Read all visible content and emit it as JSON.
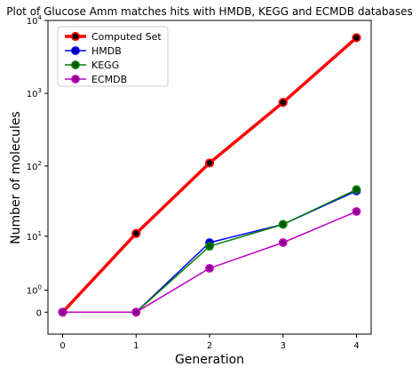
{
  "chart_data": {
    "type": "line",
    "title": "Plot of Glucose Amm matches hits with HMDB, KEGG and ECMDB databases",
    "xlabel": "Generation",
    "ylabel": "Number of molecules",
    "x": [
      0,
      1,
      2,
      3,
      4
    ],
    "xlim": [
      -0.2,
      4.2
    ],
    "ylim": [
      -1,
      10000
    ],
    "yscale": "symlog",
    "x_ticks": [
      {
        "value": 0,
        "label": "0"
      },
      {
        "value": 1,
        "label": "1"
      },
      {
        "value": 2,
        "label": "2"
      },
      {
        "value": 3,
        "label": "3"
      },
      {
        "value": 4,
        "label": "4"
      }
    ],
    "y_ticks": [
      {
        "value": 0,
        "base": "0",
        "exp": ""
      },
      {
        "value": 1,
        "base": "10",
        "exp": "0"
      },
      {
        "value": 10,
        "base": "10",
        "exp": "1"
      },
      {
        "value": 100,
        "base": "10",
        "exp": "2"
      },
      {
        "value": 1000,
        "base": "10",
        "exp": "3"
      },
      {
        "value": 10000,
        "base": "10",
        "exp": "4"
      }
    ],
    "grid": false,
    "legend_position": "top-left",
    "series": [
      {
        "name": "Computed Set",
        "values": [
          0,
          11,
          110,
          750,
          5800
        ],
        "color": "#ff0000",
        "marker_face": "#000000"
      },
      {
        "name": "HMDB",
        "values": [
          0,
          0,
          8,
          15,
          45
        ],
        "color": "#0000ff",
        "marker_face": "#0000aa"
      },
      {
        "name": "KEGG",
        "values": [
          0,
          0,
          7,
          15,
          47
        ],
        "color": "#008000",
        "marker_face": "#005500"
      },
      {
        "name": "ECMDB",
        "values": [
          0,
          0,
          3,
          8,
          23
        ],
        "color": "#bf00bf",
        "marker_face": "#880088"
      }
    ]
  }
}
